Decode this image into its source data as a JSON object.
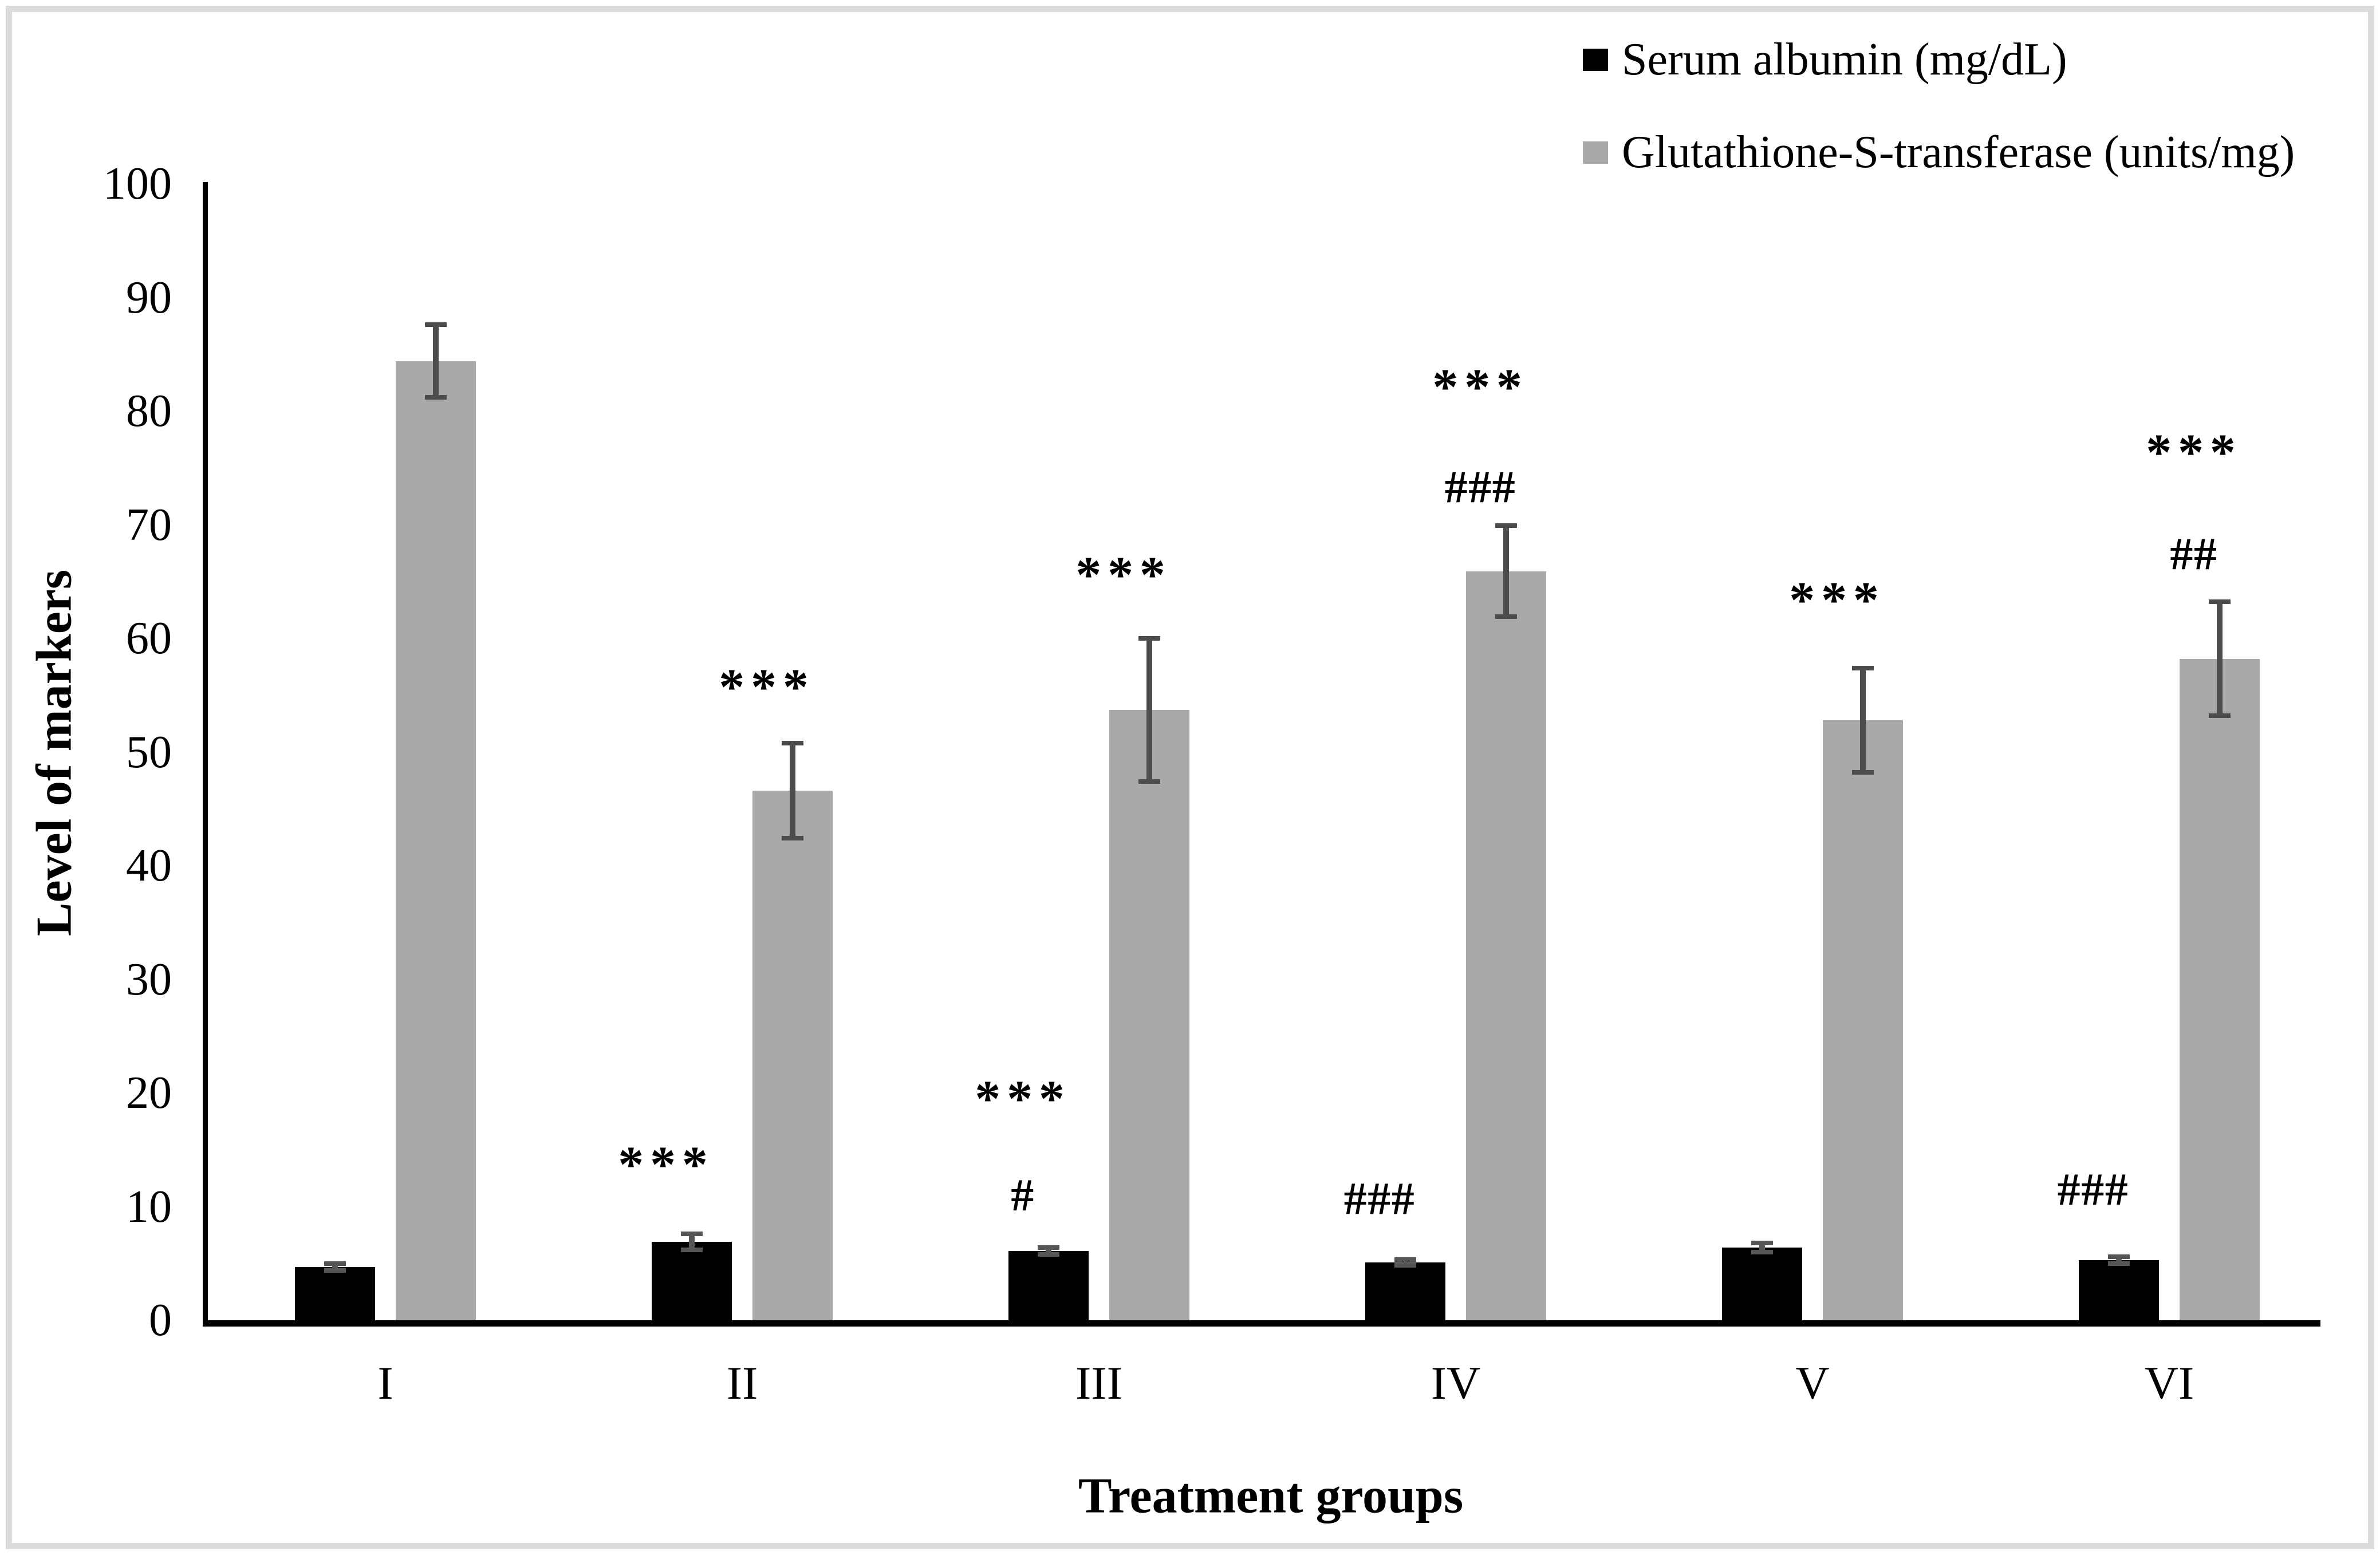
{
  "figure": {
    "background": "#ffffff",
    "border_color": "#dcdcdc"
  },
  "legend": {
    "position": "top-right",
    "items": [
      {
        "label": "Serum albumin (mg/dL)",
        "color": "#000000"
      },
      {
        "label": "Glutathione-S-transferase (units/mg)",
        "color": "#A9A9A9"
      }
    ]
  },
  "chart_data": {
    "type": "bar",
    "title": "",
    "xlabel": "Treatment groups",
    "ylabel": "Level of markers",
    "ylim": [
      0,
      100
    ],
    "ytick_step": 10,
    "grid": false,
    "legend_position": "top-right",
    "axis_color": "#000000",
    "categories": [
      "I",
      "II",
      "III",
      "IV",
      "V",
      "VI"
    ],
    "series": [
      {
        "name": "Serum albumin (mg/dL)",
        "color": "#000000",
        "error_color": "#565656",
        "values": [
          4.7,
          6.9,
          6.1,
          5.1,
          6.4,
          5.3
        ],
        "errors": [
          0.3,
          0.7,
          0.3,
          0.25,
          0.4,
          0.3
        ],
        "annotations": [
          [],
          [
            {
              "text": "***",
              "value": 14.5
            }
          ],
          [
            {
              "text": "#",
              "value": 11.3
            },
            {
              "text": "***",
              "value": 20.3
            }
          ],
          [
            {
              "text": "###",
              "value": 11.0
            }
          ],
          [],
          [
            {
              "text": "###",
              "value": 11.8
            }
          ]
        ]
      },
      {
        "name": "Glutathione-S-transferase (units/mg)",
        "color": "#A9A9A9",
        "error_color": "#4d4d4d",
        "values": [
          84.4,
          46.6,
          53.7,
          65.9,
          52.8,
          58.2
        ],
        "errors": [
          3.2,
          4.2,
          6.3,
          4.0,
          4.6,
          5.0
        ],
        "annotations": [
          [],
          [
            {
              "text": "***",
              "value": 56.5
            }
          ],
          [
            {
              "text": "***",
              "value": 66.4
            }
          ],
          [
            {
              "text": "###",
              "value": 73.6
            },
            {
              "text": "***",
              "value": 82.9
            }
          ],
          [
            {
              "text": "***",
              "value": 64.2
            }
          ],
          [
            {
              "text": "##",
              "value": 67.7
            },
            {
              "text": "***",
              "value": 77.2
            }
          ]
        ]
      }
    ]
  }
}
